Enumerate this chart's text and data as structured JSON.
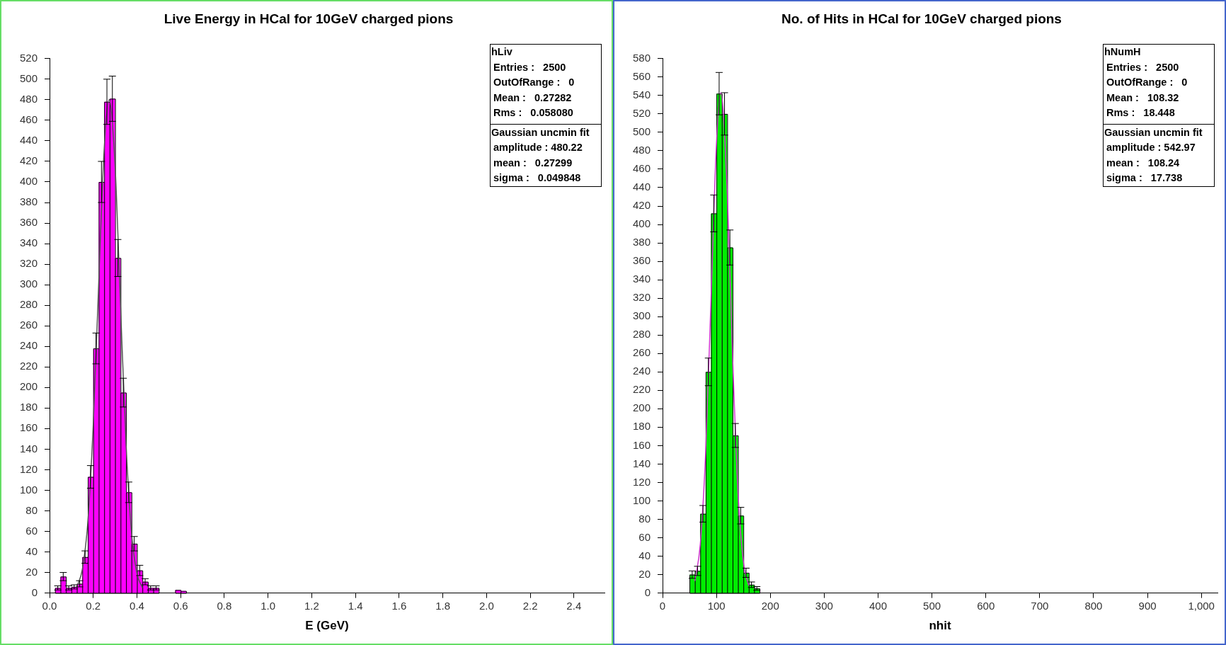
{
  "chart_data": [
    {
      "type": "histogram",
      "title": "Live Energy in HCal for 10GeV charged pions",
      "xlabel": "E (GeV)",
      "xlim": [
        0,
        2.54
      ],
      "xticks": [
        {
          "value": 0,
          "label": "0.0"
        },
        0.2,
        0.4,
        0.6,
        0.8,
        {
          "value": 1,
          "label": "1.0"
        },
        1.2,
        1.4,
        1.6,
        1.8,
        {
          "value": 2,
          "label": "2.0"
        },
        2.2,
        2.4
      ],
      "ylim": [
        0,
        520
      ],
      "yticks": [
        0,
        20,
        40,
        60,
        80,
        100,
        120,
        140,
        160,
        180,
        200,
        220,
        240,
        260,
        280,
        300,
        320,
        340,
        360,
        380,
        400,
        420,
        440,
        460,
        480,
        500,
        520
      ],
      "annotations": [
        "hLiv",
        "Entries :   2500",
        "OutOfRange :   0",
        "Mean :   0.27282",
        "Rms :   0.058080",
        "Gaussian uncmin fit",
        "amplitude : 480.22",
        "mean :   0.27299",
        "sigma :   0.049848"
      ],
      "series": [
        {
          "color": "#ff00ff",
          "bins": [
            0,
            0.025,
            0.05,
            0.075,
            0.1,
            0.125,
            0.15,
            0.175,
            0.2,
            0.225,
            0.25,
            0.275,
            0.3,
            0.325,
            0.35,
            0.375,
            0.4,
            0.425,
            0.45,
            0.475,
            0.5,
            0.525,
            0.55,
            0.575,
            0.6,
            0.625
          ],
          "values": [
            0,
            5,
            16,
            5,
            6,
            9,
            35,
            113,
            238,
            400,
            478,
            481,
            326,
            195,
            98,
            48,
            22,
            11,
            5,
            5,
            0,
            0,
            0,
            3,
            2
          ],
          "errors": [
            null,
            2,
            4,
            2,
            2,
            3,
            6,
            11,
            15,
            20,
            22,
            22,
            18,
            14,
            10,
            7,
            5,
            3,
            2,
            2,
            null,
            null,
            null,
            null,
            null
          ]
        },
        {
          "type": "line",
          "color": "#555555",
          "x": [
            0.125,
            0.15,
            0.175,
            0.2,
            0.225,
            0.25,
            0.273,
            0.3,
            0.325,
            0.35,
            0.375,
            0.4,
            0.425
          ],
          "values": [
            6,
            23,
            69,
            164,
            302,
            432,
            480,
            415,
            278,
            145,
            59,
            19,
            5
          ]
        }
      ]
    },
    {
      "type": "histogram",
      "title": "No. of Hits in HCal for 10GeV charged pions",
      "xlabel": "nhit",
      "xlim": [
        0,
        1030
      ],
      "xticks": [
        0,
        100,
        200,
        300,
        400,
        500,
        600,
        700,
        800,
        900,
        {
          "value": 1000,
          "label": "1,000"
        }
      ],
      "ylim": [
        0,
        580
      ],
      "yticks": [
        0,
        20,
        40,
        60,
        80,
        100,
        120,
        140,
        160,
        180,
        200,
        220,
        240,
        260,
        280,
        300,
        320,
        340,
        360,
        380,
        400,
        420,
        440,
        460,
        480,
        500,
        520,
        540,
        560,
        580
      ],
      "annotations": [
        "hNumH",
        "Entries :   2500",
        "OutOfRange :   0",
        "Mean :   108.32",
        "Rms :   18.448",
        "Gaussian uncmin fit",
        "amplitude : 542.97",
        "mean :   108.24",
        "sigma :   17.738"
      ],
      "series": [
        {
          "color": "#00ee00",
          "bins": [
            50,
            60,
            70,
            80,
            90,
            100,
            110,
            120,
            130,
            140,
            150,
            160,
            170,
            180
          ],
          "values": [
            20,
            24,
            86,
            240,
            412,
            542,
            520,
            375,
            171,
            84,
            22,
            9,
            5
          ],
          "errors": [
            4,
            5,
            9,
            15,
            20,
            23,
            23,
            19,
            13,
            9,
            5,
            3,
            2
          ]
        },
        {
          "type": "line",
          "color": "#cc33cc",
          "x": [
            60,
            70,
            80,
            90,
            100,
            108.24,
            120,
            130,
            140,
            150,
            160
          ],
          "values": [
            13,
            53,
            153,
            320,
            487,
            543,
            436,
            256,
            109,
            34,
            8
          ]
        }
      ]
    }
  ]
}
